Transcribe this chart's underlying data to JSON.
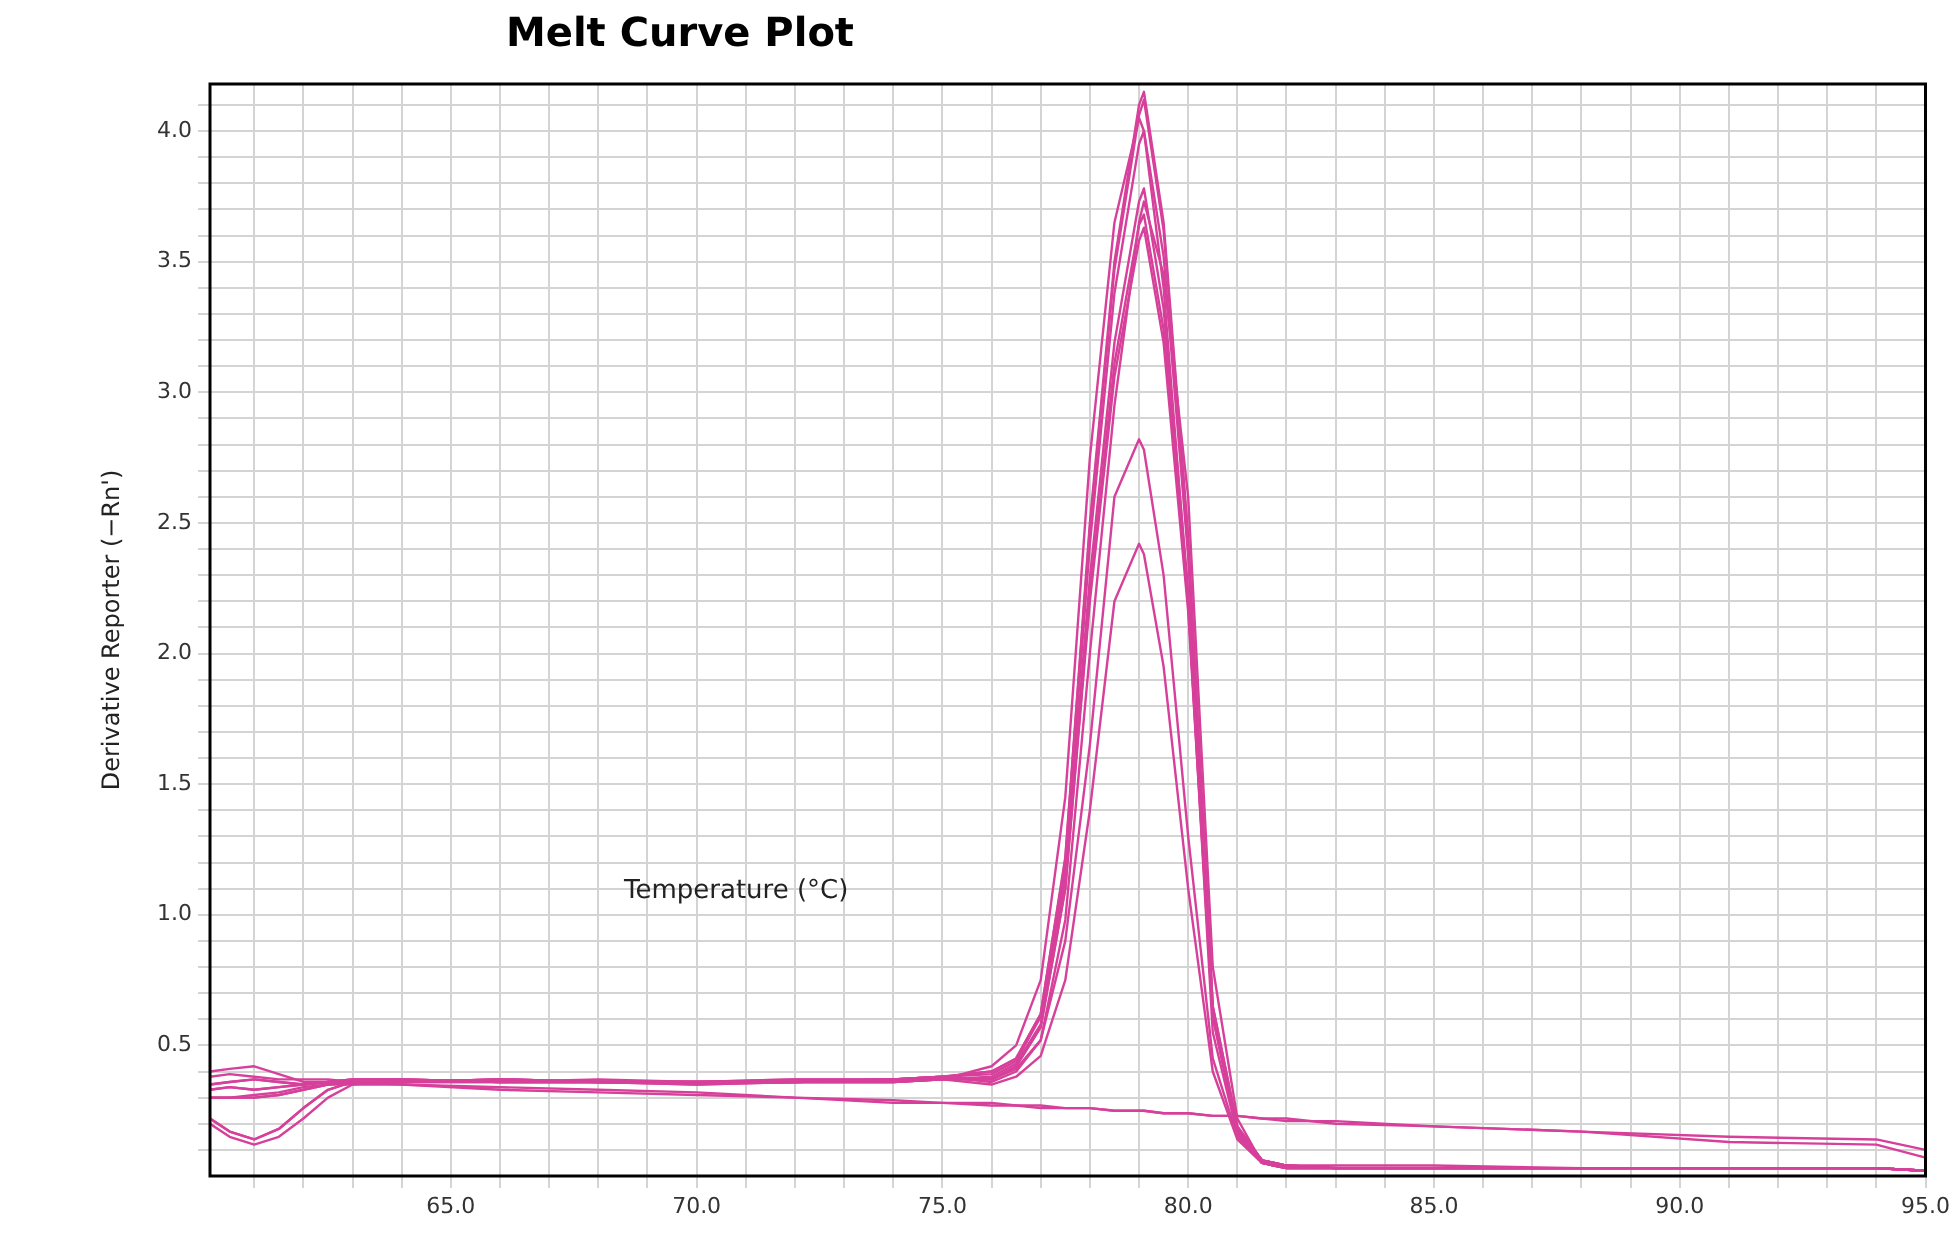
{
  "chart_data": {
    "type": "line",
    "title": "Melt Curve Plot",
    "xlabel": "Temperature (°C)",
    "ylabel": "Derivative Reporter (−Rn')",
    "x": [
      60.1,
      60.5,
      61,
      61.5,
      62,
      62.5,
      63,
      64,
      66,
      68,
      70,
      72,
      74,
      75,
      76,
      76.5,
      77,
      77.5,
      78,
      78.5,
      79,
      79.1,
      79.5,
      80,
      80.5,
      81,
      81.5,
      82,
      83,
      85,
      88,
      91,
      94,
      95
    ],
    "series": [
      {
        "color": "#d6409a",
        "values": [
          0.4,
          0.41,
          0.42,
          0.39,
          0.36,
          0.36,
          0.37,
          0.37,
          0.36,
          0.37,
          0.36,
          0.36,
          0.37,
          0.38,
          0.4,
          0.45,
          0.62,
          1.22,
          2.5,
          3.5,
          4.1,
          4.15,
          3.65,
          2.45,
          0.65,
          0.19,
          0.06,
          0.04,
          0.03,
          0.03,
          0.03,
          0.03,
          0.03,
          0.02
        ]
      },
      {
        "color": "#d6409a",
        "values": [
          0.22,
          0.17,
          0.14,
          0.18,
          0.26,
          0.33,
          0.36,
          0.36,
          0.37,
          0.36,
          0.36,
          0.37,
          0.37,
          0.38,
          0.4,
          0.45,
          0.62,
          1.21,
          2.48,
          3.47,
          4.06,
          4.12,
          3.62,
          2.43,
          0.65,
          0.19,
          0.06,
          0.04,
          0.04,
          0.04,
          0.03,
          0.03,
          0.03,
          0.02
        ]
      },
      {
        "color": "#d6409a",
        "values": [
          0.35,
          0.36,
          0.37,
          0.36,
          0.35,
          0.36,
          0.37,
          0.37,
          0.36,
          0.36,
          0.36,
          0.36,
          0.36,
          0.37,
          0.42,
          0.5,
          0.75,
          1.45,
          2.75,
          3.65,
          4.05,
          4.0,
          3.4,
          2.2,
          0.55,
          0.16,
          0.06,
          0.04,
          0.03,
          0.03,
          0.03,
          0.03,
          0.03,
          0.02
        ]
      },
      {
        "color": "#d6409a",
        "values": [
          0.3,
          0.3,
          0.3,
          0.31,
          0.33,
          0.35,
          0.36,
          0.36,
          0.36,
          0.36,
          0.35,
          0.36,
          0.37,
          0.38,
          0.39,
          0.44,
          0.61,
          1.18,
          2.42,
          3.38,
          3.95,
          4.0,
          3.52,
          2.37,
          0.64,
          0.18,
          0.06,
          0.04,
          0.03,
          0.03,
          0.03,
          0.03,
          0.03,
          0.02
        ]
      },
      {
        "color": "#d6409a",
        "values": [
          0.2,
          0.15,
          0.12,
          0.15,
          0.22,
          0.3,
          0.35,
          0.37,
          0.36,
          0.36,
          0.36,
          0.36,
          0.37,
          0.37,
          0.38,
          0.43,
          0.58,
          1.14,
          2.29,
          3.19,
          3.73,
          3.78,
          3.32,
          2.24,
          0.62,
          0.18,
          0.06,
          0.04,
          0.03,
          0.03,
          0.03,
          0.03,
          0.03,
          0.02
        ]
      },
      {
        "color": "#d6409a",
        "values": [
          0.33,
          0.34,
          0.33,
          0.34,
          0.35,
          0.36,
          0.36,
          0.36,
          0.37,
          0.36,
          0.36,
          0.36,
          0.36,
          0.37,
          0.37,
          0.41,
          0.52,
          0.98,
          2.0,
          2.95,
          3.65,
          3.73,
          3.45,
          2.6,
          0.8,
          0.22,
          0.05,
          0.03,
          0.03,
          0.03,
          0.03,
          0.03,
          0.03,
          0.02
        ]
      },
      {
        "color": "#d6409a",
        "values": [
          0.35,
          0.36,
          0.37,
          0.36,
          0.35,
          0.36,
          0.37,
          0.37,
          0.36,
          0.36,
          0.36,
          0.36,
          0.36,
          0.37,
          0.37,
          0.42,
          0.57,
          1.1,
          2.23,
          3.11,
          3.64,
          3.68,
          3.24,
          2.19,
          0.61,
          0.17,
          0.05,
          0.03,
          0.03,
          0.03,
          0.03,
          0.03,
          0.03,
          0.02
        ]
      },
      {
        "color": "#d6409a",
        "values": [
          0.22,
          0.17,
          0.14,
          0.18,
          0.26,
          0.33,
          0.36,
          0.36,
          0.37,
          0.36,
          0.36,
          0.37,
          0.37,
          0.38,
          0.37,
          0.42,
          0.57,
          1.1,
          2.2,
          3.06,
          3.58,
          3.63,
          3.19,
          2.16,
          0.61,
          0.17,
          0.05,
          0.03,
          0.03,
          0.03,
          0.03,
          0.03,
          0.03,
          0.02
        ]
      },
      {
        "color": "#d6409a",
        "values": [
          0.3,
          0.3,
          0.3,
          0.31,
          0.33,
          0.35,
          0.36,
          0.36,
          0.36,
          0.36,
          0.35,
          0.36,
          0.37,
          0.38,
          0.36,
          0.4,
          0.52,
          0.9,
          1.65,
          2.6,
          2.82,
          2.78,
          2.3,
          1.3,
          0.45,
          0.15,
          0.05,
          0.03,
          0.03,
          0.03,
          0.03,
          0.03,
          0.03,
          0.02
        ]
      },
      {
        "color": "#d6409a",
        "values": [
          0.33,
          0.34,
          0.33,
          0.34,
          0.35,
          0.36,
          0.36,
          0.36,
          0.37,
          0.36,
          0.36,
          0.36,
          0.36,
          0.37,
          0.35,
          0.38,
          0.46,
          0.75,
          1.4,
          2.2,
          2.42,
          2.38,
          1.95,
          1.1,
          0.4,
          0.14,
          0.05,
          0.03,
          0.03,
          0.03,
          0.03,
          0.03,
          0.03,
          0.02
        ]
      },
      {
        "color": "#d6409a",
        "values": [
          0.3,
          0.3,
          0.31,
          0.32,
          0.34,
          0.35,
          0.35,
          0.35,
          0.34,
          0.33,
          0.32,
          0.3,
          0.29,
          0.28,
          0.28,
          0.27,
          0.27,
          0.26,
          0.26,
          0.25,
          0.25,
          0.25,
          0.24,
          0.24,
          0.23,
          0.23,
          0.22,
          0.21,
          0.21,
          0.19,
          0.17,
          0.13,
          0.12,
          0.07
        ]
      },
      {
        "color": "#d6409a",
        "values": [
          0.38,
          0.39,
          0.38,
          0.37,
          0.37,
          0.37,
          0.36,
          0.35,
          0.33,
          0.32,
          0.31,
          0.3,
          0.28,
          0.28,
          0.27,
          0.27,
          0.26,
          0.26,
          0.26,
          0.25,
          0.25,
          0.25,
          0.24,
          0.24,
          0.23,
          0.23,
          0.22,
          0.22,
          0.2,
          0.19,
          0.17,
          0.15,
          0.14,
          0.1
        ]
      }
    ],
    "xlim": [
      60.1,
      95
    ],
    "ylim": [
      0,
      4.18
    ],
    "xticks": [
      {
        "value": 61,
        "label": null
      },
      {
        "value": 62,
        "label": null
      },
      {
        "value": 63,
        "label": null
      },
      {
        "value": 64,
        "label": null
      },
      {
        "value": 65,
        "label": "65.0"
      },
      {
        "value": 66,
        "label": null
      },
      {
        "value": 67,
        "label": null
      },
      {
        "value": 68,
        "label": null
      },
      {
        "value": 69,
        "label": null
      },
      {
        "value": 70,
        "label": "70.0"
      },
      {
        "value": 71,
        "label": null
      },
      {
        "value": 72,
        "label": null
      },
      {
        "value": 73,
        "label": null
      },
      {
        "value": 74,
        "label": null
      },
      {
        "value": 75,
        "label": "75.0"
      },
      {
        "value": 76,
        "label": null
      },
      {
        "value": 77,
        "label": null
      },
      {
        "value": 78,
        "label": null
      },
      {
        "value": 79,
        "label": null
      },
      {
        "value": 80,
        "label": "80.0"
      },
      {
        "value": 81,
        "label": null
      },
      {
        "value": 82,
        "label": null
      },
      {
        "value": 83,
        "label": null
      },
      {
        "value": 84,
        "label": null
      },
      {
        "value": 85,
        "label": "85.0"
      },
      {
        "value": 86,
        "label": null
      },
      {
        "value": 87,
        "label": null
      },
      {
        "value": 88,
        "label": null
      },
      {
        "value": 89,
        "label": null
      },
      {
        "value": 90,
        "label": "90.0"
      },
      {
        "value": 91,
        "label": null
      },
      {
        "value": 92,
        "label": null
      },
      {
        "value": 93,
        "label": null
      },
      {
        "value": 94,
        "label": null
      },
      {
        "value": 95,
        "label": "95.0"
      }
    ],
    "yticks": [
      {
        "value": 0.1,
        "label": null
      },
      {
        "value": 0.2,
        "label": null
      },
      {
        "value": 0.3,
        "label": null
      },
      {
        "value": 0.4,
        "label": null
      },
      {
        "value": 0.5,
        "label": "0.5"
      },
      {
        "value": 0.6,
        "label": null
      },
      {
        "value": 0.7,
        "label": null
      },
      {
        "value": 0.8,
        "label": null
      },
      {
        "value": 0.9,
        "label": null
      },
      {
        "value": 1.0,
        "label": "1.0"
      },
      {
        "value": 1.1,
        "label": null
      },
      {
        "value": 1.2,
        "label": null
      },
      {
        "value": 1.3,
        "label": null
      },
      {
        "value": 1.4,
        "label": null
      },
      {
        "value": 1.5,
        "label": "1.5"
      },
      {
        "value": 1.6,
        "label": null
      },
      {
        "value": 1.7,
        "label": null
      },
      {
        "value": 1.8,
        "label": null
      },
      {
        "value": 1.9,
        "label": null
      },
      {
        "value": 2.0,
        "label": "2.0"
      },
      {
        "value": 2.1,
        "label": null
      },
      {
        "value": 2.2,
        "label": null
      },
      {
        "value": 2.3,
        "label": null
      },
      {
        "value": 2.4,
        "label": null
      },
      {
        "value": 2.5,
        "label": "2.5"
      },
      {
        "value": 2.6,
        "label": null
      },
      {
        "value": 2.7,
        "label": null
      },
      {
        "value": 2.8,
        "label": null
      },
      {
        "value": 2.9,
        "label": null
      },
      {
        "value": 3.0,
        "label": "3.0"
      },
      {
        "value": 3.1,
        "label": null
      },
      {
        "value": 3.2,
        "label": null
      },
      {
        "value": 3.3,
        "label": null
      },
      {
        "value": 3.4,
        "label": null
      },
      {
        "value": 3.5,
        "label": "3.5"
      },
      {
        "value": 3.6,
        "label": null
      },
      {
        "value": 3.7,
        "label": null
      },
      {
        "value": 3.8,
        "label": null
      },
      {
        "value": 3.9,
        "label": null
      },
      {
        "value": 4.0,
        "label": "4.0"
      },
      {
        "value": 4.1,
        "label": null
      }
    ],
    "grid": true,
    "marker": "none",
    "line_style": "solid"
  }
}
